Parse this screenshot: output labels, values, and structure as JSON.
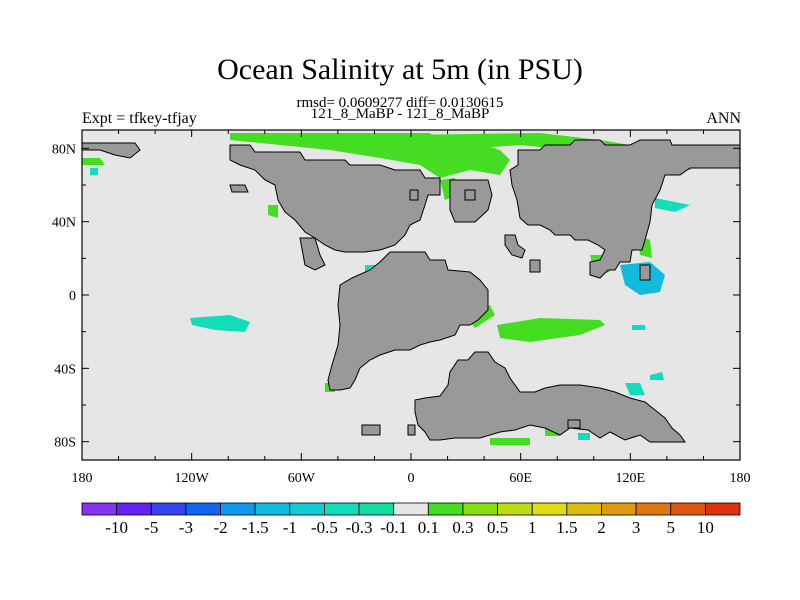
{
  "header": {
    "title": "Ocean Salinity at 5m (in PSU)",
    "rmsd_line": "rmsd= 0.0609277 diff= 0.0130615",
    "subtitle": "121_8_MaBP - 121_8_MaBP",
    "left_label": "Expt = tfkey-tfjay",
    "right_label": "ANN"
  },
  "map": {
    "x_ticks": [
      {
        "value": -180,
        "label": "180"
      },
      {
        "value": -120,
        "label": "120W"
      },
      {
        "value": -60,
        "label": "60W"
      },
      {
        "value": 0,
        "label": "0"
      },
      {
        "value": 60,
        "label": "60E"
      },
      {
        "value": 120,
        "label": "120E"
      },
      {
        "value": 180,
        "label": "180"
      }
    ],
    "y_ticks": [
      {
        "value": 80,
        "label": "80N"
      },
      {
        "value": 40,
        "label": "40N"
      },
      {
        "value": 0,
        "label": "0"
      },
      {
        "value": -40,
        "label": "40S"
      },
      {
        "value": -80,
        "label": "80S"
      }
    ],
    "lon_range": [
      -180,
      180
    ],
    "lat_range": [
      -90,
      90
    ],
    "colors": {
      "ocean": "#e6e6e6",
      "land": "#999999",
      "positive": "#44dd22",
      "negative": "#11ddbb",
      "negative_strong": "#11bbdd"
    }
  },
  "colorbar": {
    "labels": [
      "-10",
      "-5",
      "-3",
      "-2",
      "-1.5",
      "-1",
      "-0.5",
      "-0.3",
      "-0.1",
      "0.1",
      "0.3",
      "0.5",
      "1",
      "1.5",
      "2",
      "3",
      "5",
      "10"
    ],
    "colors": [
      "#8833ee",
      "#6622ee",
      "#3344ee",
      "#1166ee",
      "#1199ee",
      "#11bbdd",
      "#11ccd0",
      "#11ddbb",
      "#11dda0",
      "#e6e6e6",
      "#44dd22",
      "#88dd11",
      "#bbdd11",
      "#dddd11",
      "#ddbb11",
      "#dd9911",
      "#dd7711",
      "#dd5511",
      "#dd3311"
    ]
  }
}
